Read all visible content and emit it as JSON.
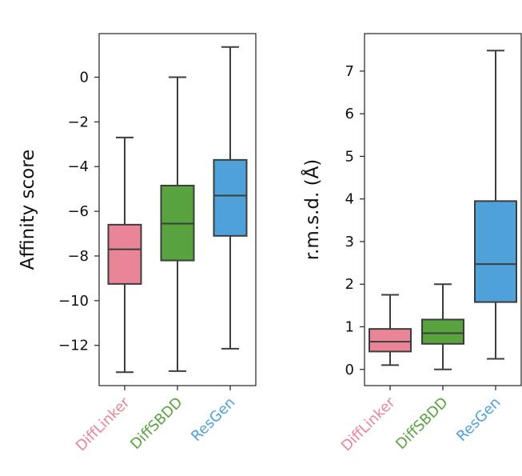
{
  "chart_data": [
    {
      "type": "box",
      "ylabel": "Affinity score",
      "ylim": [
        -13.8,
        1.95
      ],
      "yticks": [
        0,
        -2,
        -4,
        -6,
        -8,
        -10,
        -12
      ],
      "categories": [
        "DiffLinker",
        "DiffSBDD",
        "ResGen"
      ],
      "colors": [
        "#ea8497",
        "#58a33e",
        "#4fa1d9"
      ],
      "boxes": [
        {
          "name": "DiffLinker",
          "min": -13.2,
          "q1": -9.25,
          "median": -7.7,
          "q3": -6.6,
          "max": -2.7
        },
        {
          "name": "DiffSBDD",
          "min": -13.15,
          "q1": -8.2,
          "median": -6.55,
          "q3": -4.85,
          "max": 0.0
        },
        {
          "name": "ResGen",
          "min": -12.15,
          "q1": -7.1,
          "median": -5.3,
          "q3": -3.7,
          "max": 1.35
        }
      ]
    },
    {
      "type": "box",
      "ylabel": "r.m.s.d. (Å)",
      "ylim": [
        -0.38,
        7.88
      ],
      "yticks": [
        0,
        1,
        2,
        3,
        4,
        5,
        6,
        7
      ],
      "categories": [
        "DiffLinker",
        "DiffSBDD",
        "ResGen"
      ],
      "colors": [
        "#ea8497",
        "#58a33e",
        "#4fa1d9"
      ],
      "boxes": [
        {
          "name": "DiffLinker",
          "min": 0.1,
          "q1": 0.42,
          "median": 0.65,
          "q3": 0.95,
          "max": 1.75
        },
        {
          "name": "DiffSBDD",
          "min": 0.0,
          "q1": 0.6,
          "median": 0.85,
          "q3": 1.17,
          "max": 2.0
        },
        {
          "name": "ResGen",
          "min": 0.25,
          "q1": 1.58,
          "median": 2.47,
          "q3": 3.95,
          "max": 7.48
        }
      ]
    }
  ]
}
